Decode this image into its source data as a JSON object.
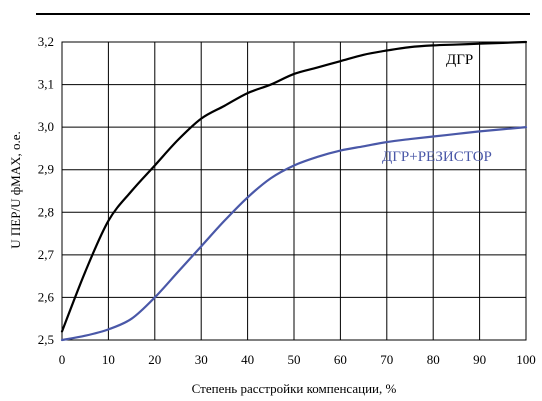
{
  "chart_data": {
    "type": "line",
    "xlabel": "Степень расстройки компенсации, %",
    "ylabel": "U ПЕР/U фМАХ, о.е.",
    "xlim": [
      0,
      100
    ],
    "ylim": [
      2.5,
      3.2
    ],
    "x_ticks": [
      "0",
      "10",
      "20",
      "30",
      "40",
      "50",
      "60",
      "70",
      "80",
      "90",
      "100"
    ],
    "y_ticks": [
      "2,5",
      "2,6",
      "2,7",
      "2,8",
      "2,9",
      "3,0",
      "3,1",
      "3,2"
    ],
    "grid": true,
    "series": [
      {
        "name": "ДГР",
        "color": "#000000",
        "x": [
          0,
          5,
          10,
          15,
          20,
          25,
          30,
          35,
          40,
          45,
          50,
          55,
          60,
          65,
          70,
          75,
          80,
          85,
          90,
          95,
          100
        ],
        "y": [
          2.52,
          2.66,
          2.78,
          2.85,
          2.91,
          2.97,
          3.02,
          3.05,
          3.08,
          3.1,
          3.125,
          3.14,
          3.155,
          3.17,
          3.18,
          3.188,
          3.192,
          3.194,
          3.196,
          3.198,
          3.2
        ]
      },
      {
        "name": "ДГР+РЕЗИСТОР",
        "color": "#4a58a8",
        "x": [
          0,
          5,
          10,
          15,
          20,
          25,
          30,
          35,
          40,
          45,
          50,
          55,
          60,
          65,
          70,
          75,
          80,
          85,
          90,
          95,
          100
        ],
        "y": [
          2.5,
          2.51,
          2.525,
          2.55,
          2.6,
          2.66,
          2.72,
          2.78,
          2.835,
          2.88,
          2.91,
          2.93,
          2.945,
          2.955,
          2.965,
          2.972,
          2.978,
          2.984,
          2.99,
          2.995,
          3.0
        ]
      }
    ]
  }
}
